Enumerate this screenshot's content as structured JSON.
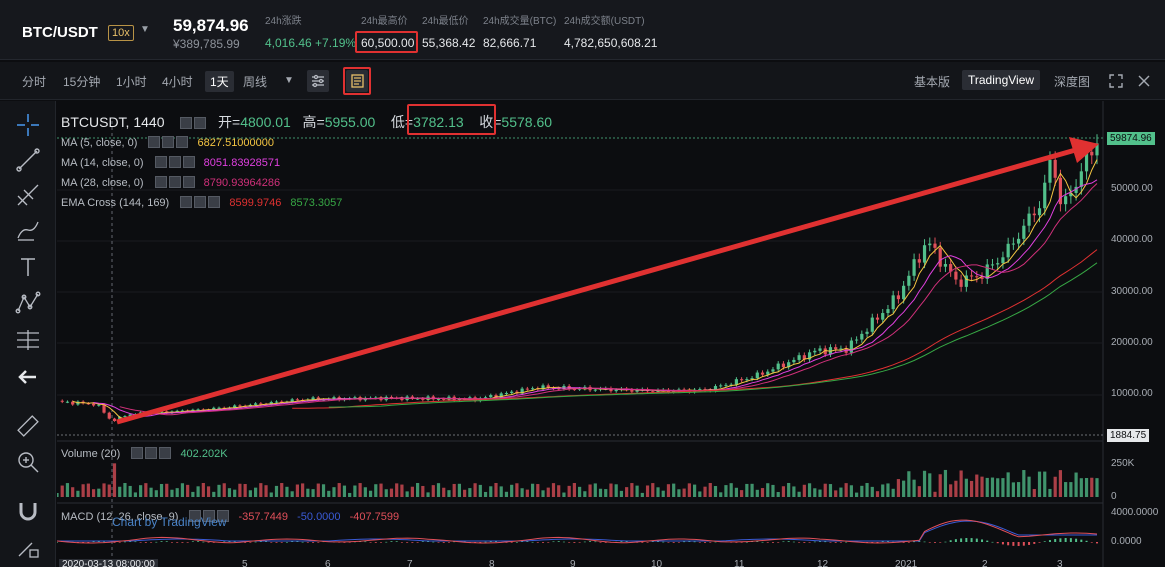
{
  "ticker": {
    "pair": "BTC/USDT",
    "leverage": "10x",
    "last_price": "59,874.96",
    "last_price_cny": "¥389,785.99",
    "stats": [
      {
        "label": "24h涨跌",
        "value": "4,016.46 +7.19%",
        "tone": "green"
      },
      {
        "label": "24h最高价",
        "value": "60,500.00",
        "tone": "normal"
      },
      {
        "label": "24h最低价",
        "value": "55,368.42",
        "tone": "normal"
      },
      {
        "label": "24h成交量(BTC)",
        "value": "82,666.71",
        "tone": "normal"
      },
      {
        "label": "24h成交额(USDT)",
        "value": "4,782,650,608.21",
        "tone": "normal"
      }
    ]
  },
  "toolbar": {
    "timeframes": [
      "分时",
      "15分钟",
      "1小时",
      "4小时",
      "1天",
      "周线"
    ],
    "active_timeframe": "1天",
    "views": [
      "基本版",
      "TradingView",
      "深度图"
    ],
    "active_view": "TradingView",
    "icons": [
      "caret-down-icon",
      "indicator-settings-icon",
      "chart-properties-icon",
      "fullscreen-icon",
      "close-icon"
    ]
  },
  "drawing_tools": [
    "crosshair-icon",
    "trendline-icon",
    "fib-icon",
    "brush-icon",
    "text-icon",
    "pattern-icon",
    "measure-icon",
    "back-arrow-icon",
    "ruler-icon",
    "zoom-in-icon",
    "magnet-icon",
    "lock-pencil-icon"
  ],
  "chart": {
    "symbol": "BTCUSDT, 1440",
    "ohlc": {
      "open_label": "开=",
      "open": "4800.01",
      "high_label": "高=",
      "high": "5955.00",
      "low_label": "低=",
      "low": "3782.13",
      "close_label": "收=",
      "close": "5578.60"
    },
    "indicators": [
      {
        "name": "MA (5, close, 0)",
        "value": "6827.51000000",
        "color": "#f5c542"
      },
      {
        "name": "MA (14, close, 0)",
        "value": "8051.83928571",
        "color": "#e040e0"
      },
      {
        "name": "MA (28, close, 0)",
        "value": "8790.93964286",
        "color": "#d0307a"
      },
      {
        "name": "EMA Cross (144, 169)",
        "value": "8599.9746",
        "value2": "8573.3057",
        "color": "#e03131",
        "color2": "#37a845"
      }
    ],
    "volume": {
      "name": "Volume (20)",
      "value": "402.202K"
    },
    "macd": {
      "name": "MACD (12, 26, close, 9)",
      "value1": "-357.7449",
      "value2": "-50.0000",
      "value3": "-407.7599"
    },
    "credit": "Chart by TradingView",
    "price_axis": [
      "50000.00",
      "40000.00",
      "30000.00",
      "20000.00",
      "10000.00"
    ],
    "current_price_tag": "59874.96",
    "low_price_tag": "1884.75",
    "volume_axis": [
      "250K",
      "0"
    ],
    "macd_axis": [
      "4000.0000",
      "0.0000"
    ],
    "x_axis": [
      "2020-03-13 08:00:00",
      "5",
      "6",
      "7",
      "8",
      "9",
      "10",
      "11",
      "12",
      "2021",
      "2",
      "3"
    ],
    "colors": {
      "up": "#52c08b",
      "down": "#e0505a",
      "bg": "#0c0d10",
      "annotation": "#e03131"
    }
  }
}
